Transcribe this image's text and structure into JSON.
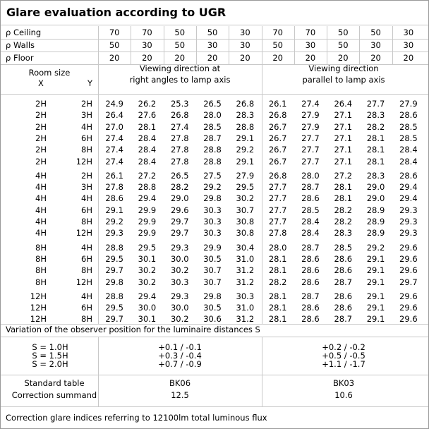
{
  "title": "Glare evaluation according to UGR",
  "reflectances": [
    {
      "label": "ρ Ceiling",
      "values": [
        "70",
        "70",
        "50",
        "50",
        "30",
        "70",
        "70",
        "50",
        "50",
        "30"
      ]
    },
    {
      "label": "ρ Walls",
      "values": [
        "50",
        "30",
        "50",
        "30",
        "30",
        "50",
        "30",
        "50",
        "30",
        "30"
      ]
    },
    {
      "label": "ρ Floor",
      "values": [
        "20",
        "20",
        "20",
        "20",
        "20",
        "20",
        "20",
        "20",
        "20",
        "20"
      ]
    }
  ],
  "header": {
    "room_size": "Room size",
    "x": "X",
    "y": "Y",
    "perpendicular": [
      "Viewing direction at",
      "right angles to lamp axis"
    ],
    "parallel": [
      "Viewing direction",
      "parallel to lamp axis"
    ]
  },
  "groups": [
    [
      {
        "x": "2H",
        "y": "2H",
        "values": [
          "24.9",
          "26.2",
          "25.3",
          "26.5",
          "26.8",
          "26.1",
          "27.4",
          "26.4",
          "27.7",
          "27.9"
        ]
      },
      {
        "x": "2H",
        "y": "3H",
        "values": [
          "26.4",
          "27.6",
          "26.8",
          "28.0",
          "28.3",
          "26.8",
          "27.9",
          "27.1",
          "28.3",
          "28.6"
        ]
      },
      {
        "x": "2H",
        "y": "4H",
        "values": [
          "27.0",
          "28.1",
          "27.4",
          "28.5",
          "28.8",
          "26.7",
          "27.9",
          "27.1",
          "28.2",
          "28.5"
        ]
      },
      {
        "x": "2H",
        "y": "6H",
        "values": [
          "27.4",
          "28.4",
          "27.8",
          "28.7",
          "29.1",
          "26.7",
          "27.7",
          "27.1",
          "28.1",
          "28.5"
        ]
      },
      {
        "x": "2H",
        "y": "8H",
        "values": [
          "27.4",
          "28.4",
          "27.8",
          "28.8",
          "29.2",
          "26.7",
          "27.7",
          "27.1",
          "28.1",
          "28.4"
        ]
      },
      {
        "x": "2H",
        "y": "12H",
        "values": [
          "27.4",
          "28.4",
          "27.8",
          "28.8",
          "29.1",
          "26.7",
          "27.7",
          "27.1",
          "28.1",
          "28.4"
        ]
      }
    ],
    [
      {
        "x": "4H",
        "y": "2H",
        "values": [
          "26.1",
          "27.2",
          "26.5",
          "27.5",
          "27.9",
          "26.8",
          "28.0",
          "27.2",
          "28.3",
          "28.6"
        ]
      },
      {
        "x": "4H",
        "y": "3H",
        "values": [
          "27.8",
          "28.8",
          "28.2",
          "29.2",
          "29.5",
          "27.7",
          "28.7",
          "28.1",
          "29.0",
          "29.4"
        ]
      },
      {
        "x": "4H",
        "y": "4H",
        "values": [
          "28.6",
          "29.4",
          "29.0",
          "29.8",
          "30.2",
          "27.7",
          "28.6",
          "28.1",
          "29.0",
          "29.4"
        ]
      },
      {
        "x": "4H",
        "y": "6H",
        "values": [
          "29.1",
          "29.9",
          "29.6",
          "30.3",
          "30.7",
          "27.7",
          "28.5",
          "28.2",
          "28.9",
          "29.3"
        ]
      },
      {
        "x": "4H",
        "y": "8H",
        "values": [
          "29.2",
          "29.9",
          "29.7",
          "30.3",
          "30.8",
          "27.7",
          "28.4",
          "28.2",
          "28.9",
          "29.3"
        ]
      },
      {
        "x": "4H",
        "y": "12H",
        "values": [
          "29.3",
          "29.9",
          "29.7",
          "30.3",
          "30.8",
          "27.8",
          "28.4",
          "28.3",
          "28.9",
          "29.3"
        ]
      }
    ],
    [
      {
        "x": "8H",
        "y": "4H",
        "values": [
          "28.8",
          "29.5",
          "29.3",
          "29.9",
          "30.4",
          "28.0",
          "28.7",
          "28.5",
          "29.2",
          "29.6"
        ]
      },
      {
        "x": "8H",
        "y": "6H",
        "values": [
          "29.5",
          "30.1",
          "30.0",
          "30.5",
          "31.0",
          "28.1",
          "28.6",
          "28.6",
          "29.1",
          "29.6"
        ]
      },
      {
        "x": "8H",
        "y": "8H",
        "values": [
          "29.7",
          "30.2",
          "30.2",
          "30.7",
          "31.2",
          "28.1",
          "28.6",
          "28.6",
          "29.1",
          "29.6"
        ]
      },
      {
        "x": "8H",
        "y": "12H",
        "values": [
          "29.8",
          "30.2",
          "30.3",
          "30.7",
          "31.2",
          "28.2",
          "28.6",
          "28.7",
          "29.1",
          "29.7"
        ]
      }
    ],
    [
      {
        "x": "12H",
        "y": "4H",
        "values": [
          "28.8",
          "29.4",
          "29.3",
          "29.8",
          "30.3",
          "28.1",
          "28.7",
          "28.6",
          "29.1",
          "29.6"
        ]
      },
      {
        "x": "12H",
        "y": "6H",
        "values": [
          "29.5",
          "30.0",
          "30.0",
          "30.5",
          "31.0",
          "28.1",
          "28.6",
          "28.6",
          "29.1",
          "29.6"
        ]
      },
      {
        "x": "12H",
        "y": "8H",
        "values": [
          "29.7",
          "30.1",
          "30.2",
          "30.6",
          "31.2",
          "28.1",
          "28.6",
          "28.7",
          "29.1",
          "29.6"
        ]
      }
    ]
  ],
  "variation": {
    "title": "Variation of the observer position for the luminaire distances S",
    "rows": [
      {
        "s": "S = 1.0H",
        "perpendicular": "+0.1 / -0.1",
        "parallel": "+0.2 / -0.2"
      },
      {
        "s": "S = 1.5H",
        "perpendicular": "+0.3 / -0.4",
        "parallel": "+0.5 / -0.5"
      },
      {
        "s": "S = 2.0H",
        "perpendicular": "+0.7 / -0.9",
        "parallel": "+1.1 / -1.7"
      }
    ]
  },
  "standard": {
    "labels": [
      "Standard table",
      "Correction summand"
    ],
    "perpendicular": [
      "BK06",
      "12.5"
    ],
    "parallel": [
      "BK03",
      "10.6"
    ]
  },
  "footer": "Correction glare indices referring to 12100lm total luminous flux"
}
